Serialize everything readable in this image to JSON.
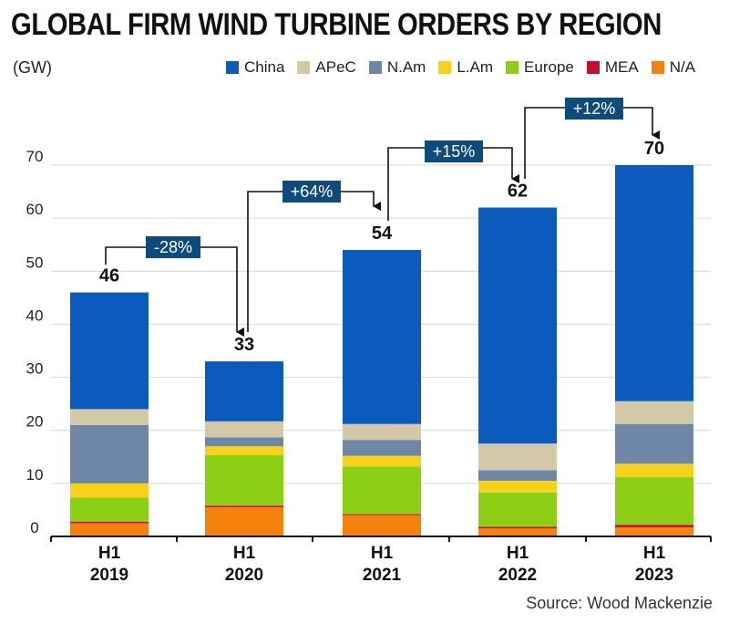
{
  "title": "GLOBAL FIRM WIND TURBINE ORDERS BY REGION",
  "unit": "(GW)",
  "source": "Source: Wood Mackenzie",
  "colors": {
    "China": "#0a5bbd",
    "APeC": "#d3c8a8",
    "N.Am": "#6f87a7",
    "L.Am": "#f8d21a",
    "Europe": "#8ccf15",
    "MEA": "#c8102e",
    "N/A": "#f5820c",
    "change_box": "#0e4a7a"
  },
  "chart_data": {
    "type": "bar",
    "stacked": true,
    "categories": [
      [
        "H1",
        "2019"
      ],
      [
        "H1",
        "2020"
      ],
      [
        "H1",
        "2021"
      ],
      [
        "H1",
        "2022"
      ],
      [
        "H1",
        "2023"
      ]
    ],
    "ylim": [
      0,
      70
    ],
    "yticks": [
      0,
      10,
      20,
      30,
      40,
      50,
      60,
      70
    ],
    "grid": true,
    "legend_position": "top-right",
    "series": [
      {
        "name": "N/A",
        "values": [
          2.5,
          5.5,
          4.0,
          1.5,
          1.7
        ]
      },
      {
        "name": "MEA",
        "values": [
          0.3,
          0.3,
          0.2,
          0.3,
          0.5
        ]
      },
      {
        "name": "Europe",
        "values": [
          4.5,
          9.5,
          9.0,
          6.5,
          9.0
        ]
      },
      {
        "name": "L.Am",
        "values": [
          2.7,
          1.7,
          2.0,
          2.2,
          2.5
        ]
      },
      {
        "name": "N.Am",
        "values": [
          11.0,
          1.7,
          3.0,
          2.0,
          7.5
        ]
      },
      {
        "name": "APeC",
        "values": [
          3.0,
          3.0,
          3.0,
          5.0,
          4.3
        ]
      },
      {
        "name": "China",
        "values": [
          22.0,
          11.3,
          32.8,
          44.5,
          44.5
        ]
      }
    ],
    "totals": [
      "46",
      "33",
      "54",
      "62",
      "70"
    ],
    "changes": [
      {
        "from": 0,
        "to": 1,
        "label": "-28%"
      },
      {
        "from": 1,
        "to": 2,
        "label": "+64%"
      },
      {
        "from": 2,
        "to": 3,
        "label": "+15%"
      },
      {
        "from": 3,
        "to": 4,
        "label": "+12%"
      }
    ]
  },
  "legend": [
    "China",
    "APeC",
    "N.Am",
    "L.Am",
    "Europe",
    "MEA",
    "N/A"
  ]
}
